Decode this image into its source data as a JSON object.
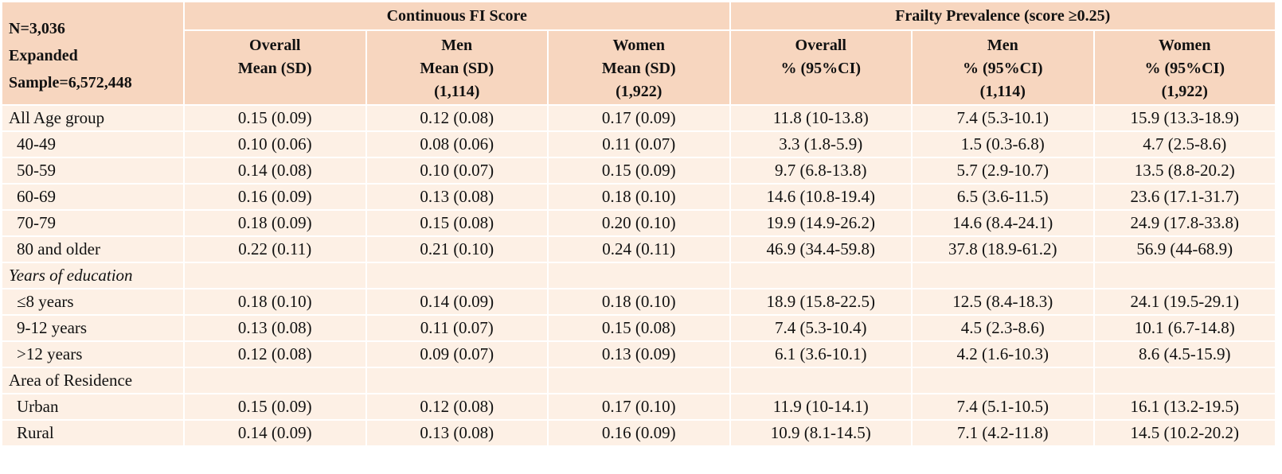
{
  "header": {
    "corner": [
      "N=3,036",
      "Expanded",
      "Sample=6,572,448"
    ],
    "groups": [
      {
        "label": "Continuous FI Score",
        "span": 3
      },
      {
        "label": "Frailty Prevalence (score ≥0.25)",
        "span": 3
      }
    ],
    "columns": [
      [
        "Overall",
        "Mean (SD)"
      ],
      [
        "Men",
        "Mean (SD)",
        "(1,114)"
      ],
      [
        "Women",
        "Mean (SD)",
        "(1,922)"
      ],
      [
        "Overall",
        "% (95%CI)"
      ],
      [
        "Men",
        "% (95%CI)",
        "(1,114)"
      ],
      [
        "Women",
        "% (95%CI)",
        "(1,922)"
      ]
    ]
  },
  "rows": [
    {
      "label": "All Age group",
      "indent": false,
      "italic": false,
      "values": [
        "0.15 (0.09)",
        "0.12 (0.08)",
        "0.17 (0.09)",
        "11.8 (10-13.8)",
        "7.4 (5.3-10.1)",
        "15.9 (13.3-18.9)"
      ]
    },
    {
      "label": "40-49",
      "indent": true,
      "italic": false,
      "values": [
        "0.10 (0.06)",
        "0.08 (0.06)",
        "0.11 (0.07)",
        "3.3 (1.8-5.9)",
        "1.5 (0.3-6.8)",
        "4.7 (2.5-8.6)"
      ]
    },
    {
      "label": "50-59",
      "indent": true,
      "italic": false,
      "values": [
        "0.14 (0.08)",
        "0.10 (0.07)",
        "0.15 (0.09)",
        "9.7 (6.8-13.8)",
        "5.7 (2.9-10.7)",
        "13.5 (8.8-20.2)"
      ]
    },
    {
      "label": "60-69",
      "indent": true,
      "italic": false,
      "values": [
        "0.16 (0.09)",
        "0.13 (0.08)",
        "0.18 (0.10)",
        "14.6 (10.8-19.4)",
        "6.5 (3.6-11.5)",
        "23.6 (17.1-31.7)"
      ]
    },
    {
      "label": "70-79",
      "indent": true,
      "italic": false,
      "values": [
        "0.18 (0.09)",
        "0.15 (0.08)",
        "0.20 (0.10)",
        "19.9 (14.9-26.2)",
        "14.6 (8.4-24.1)",
        "24.9 (17.8-33.8)"
      ]
    },
    {
      "label": "80 and older",
      "indent": true,
      "italic": false,
      "values": [
        "0.22 (0.11)",
        "0.21 (0.10)",
        "0.24 (0.11)",
        "46.9 (34.4-59.8)",
        "37.8 (18.9-61.2)",
        "56.9 (44-68.9)"
      ]
    },
    {
      "label": "Years of education",
      "indent": false,
      "italic": true,
      "values": [
        "",
        "",
        "",
        "",
        "",
        ""
      ]
    },
    {
      "label": "≤8 years",
      "indent": true,
      "italic": false,
      "values": [
        "0.18 (0.10)",
        "0.14 (0.09)",
        "0.18 (0.10)",
        "18.9 (15.8-22.5)",
        "12.5 (8.4-18.3)",
        "24.1 (19.5-29.1)"
      ]
    },
    {
      "label": "9-12 years",
      "indent": true,
      "italic": false,
      "values": [
        "0.13 (0.08)",
        "0.11 (0.07)",
        "0.15 (0.08)",
        "7.4 (5.3-10.4)",
        "4.5 (2.3-8.6)",
        "10.1 (6.7-14.8)"
      ]
    },
    {
      "label": ">12 years",
      "indent": true,
      "italic": false,
      "values": [
        "0.12 (0.08)",
        "0.09 (0.07)",
        "0.13 (0.09)",
        "6.1 (3.6-10.1)",
        "4.2 (1.6-10.3)",
        "8.6 (4.5-15.9)"
      ]
    },
    {
      "label": "Area of Residence",
      "indent": false,
      "italic": false,
      "values": [
        "",
        "",
        "",
        "",
        "",
        ""
      ]
    },
    {
      "label": "Urban",
      "indent": true,
      "italic": false,
      "values": [
        "0.15 (0.09)",
        "0.12 (0.08)",
        "0.17 (0.10)",
        "11.9 (10-14.1)",
        "7.4 (5.1-10.5)",
        "16.1 (13.2-19.5)"
      ]
    },
    {
      "label": "Rural",
      "indent": true,
      "italic": false,
      "values": [
        "0.14 (0.09)",
        "0.13 (0.08)",
        "0.16 (0.09)",
        "10.9 (8.1-14.5)",
        "7.1 (4.2-11.8)",
        "14.5 (10.2-20.2)"
      ]
    }
  ],
  "colors": {
    "header_bg": "#f7d6bf",
    "body_bg": "#fdf0e5",
    "border": "#2b2b2b"
  }
}
